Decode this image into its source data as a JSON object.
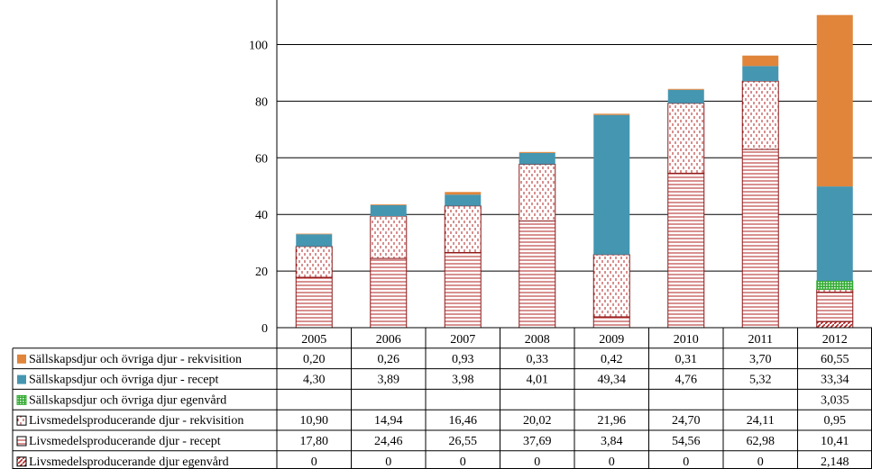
{
  "chart_data": {
    "type": "bar",
    "stacked": true,
    "categories": [
      "2005",
      "2006",
      "2007",
      "2008",
      "2009",
      "2010",
      "2011",
      "2012"
    ],
    "ylim": [
      0,
      110
    ],
    "yticks": [
      0,
      20,
      40,
      60,
      80,
      100
    ],
    "grid": true,
    "legend": "data-table-left",
    "series": [
      {
        "name": "Livsmedelsproducerande djur egenvård",
        "values": [
          0,
          0,
          0,
          0,
          0,
          0,
          0,
          2.148
        ],
        "labels": [
          "0",
          "0",
          "0",
          "0",
          "0",
          "0",
          "0",
          "2,148"
        ],
        "pattern": "diag",
        "color": "#b22222"
      },
      {
        "name": "Livsmedelsproducerande djur - recept",
        "values": [
          17.8,
          24.46,
          26.55,
          37.69,
          3.84,
          54.56,
          62.98,
          10.41
        ],
        "labels": [
          "17,80",
          "24,46",
          "26,55",
          "37,69",
          "3,84",
          "54,56",
          "62,98",
          "10,41"
        ],
        "pattern": "hlines",
        "color": "#b22222"
      },
      {
        "name": "Livsmedelsproducerande djur - rekvisition",
        "values": [
          10.9,
          14.94,
          16.46,
          20.02,
          21.96,
          24.7,
          24.11,
          0.95
        ],
        "labels": [
          "10,90",
          "14,94",
          "16,46",
          "20,02",
          "21,96",
          "24,70",
          "24,11",
          "0,95"
        ],
        "pattern": "dash",
        "color": "#b22222"
      },
      {
        "name": "Sällskapsdjur och övriga djur egenvård",
        "values": [
          null,
          null,
          null,
          null,
          null,
          null,
          null,
          3.035
        ],
        "labels": [
          "",
          "",
          "",
          "",
          "",
          "",
          "",
          "3,035"
        ],
        "pattern": "grid",
        "color": "#33aa33"
      },
      {
        "name": "Sällskapsdjur och övriga djur - recept",
        "values": [
          4.3,
          3.89,
          3.98,
          4.01,
          49.34,
          4.76,
          5.32,
          33.34
        ],
        "labels": [
          "4,30",
          "3,89",
          "3,98",
          "4,01",
          "49,34",
          "4,76",
          "5,32",
          "33,34"
        ],
        "pattern": "solid",
        "color": "#4596b1"
      },
      {
        "name": "Sällskapsdjur och övriga djur - rekvisition",
        "values": [
          0.2,
          0.26,
          0.93,
          0.33,
          0.42,
          0.31,
          3.7,
          60.55
        ],
        "labels": [
          "0,20",
          "0,26",
          "0,93",
          "0,33",
          "0,42",
          "0,31",
          "3,70",
          "60,55"
        ],
        "pattern": "solid",
        "color": "#e0853a"
      }
    ],
    "table_row_order": [
      5,
      4,
      3,
      2,
      1,
      0
    ]
  }
}
